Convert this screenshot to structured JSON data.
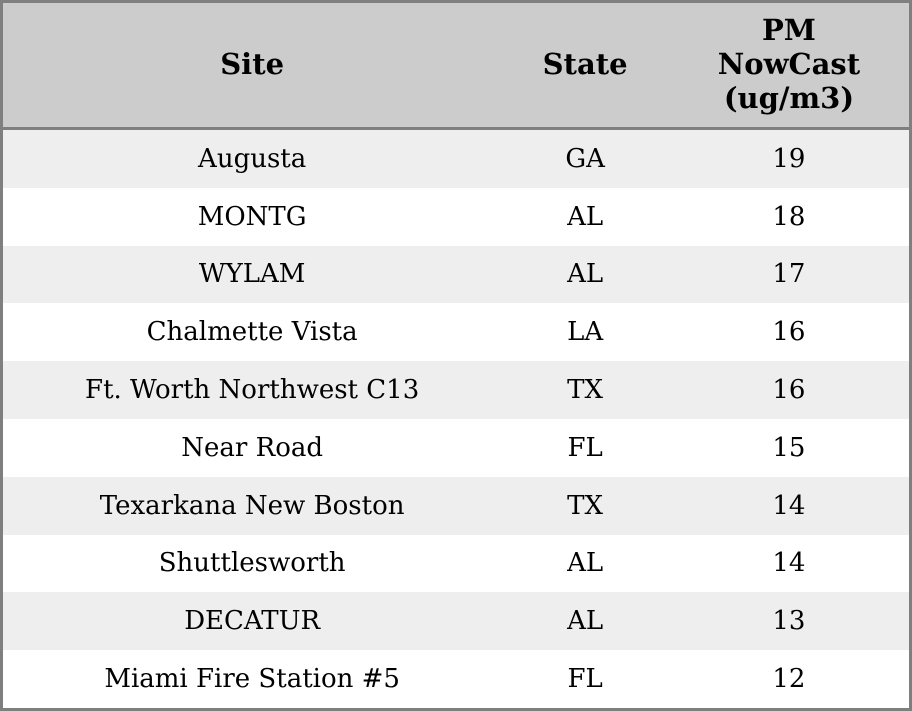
{
  "chart_data": {
    "type": "table",
    "title": "",
    "columns": [
      "Site",
      "State",
      "PM NowCast (ug/m3)"
    ],
    "header_display": [
      "Site",
      "State",
      "PM\nNowCast\n(ug/m3)"
    ],
    "rows": [
      [
        "Augusta",
        "GA",
        19
      ],
      [
        "MONTG",
        "AL",
        18
      ],
      [
        "WYLAM",
        "AL",
        17
      ],
      [
        "Chalmette Vista",
        "LA",
        16
      ],
      [
        "Ft. Worth Northwest C13",
        "TX",
        16
      ],
      [
        "Near Road",
        "FL",
        15
      ],
      [
        "Texarkana New Boston",
        "TX",
        14
      ],
      [
        "Shuttlesworth",
        "AL",
        14
      ],
      [
        "DECATUR",
        "AL",
        13
      ],
      [
        "Miami Fire Station #5",
        "FL",
        12
      ]
    ],
    "layout": {
      "striped": true,
      "header_position": "top"
    }
  },
  "colors": {
    "header_bg": "#cccccc",
    "row_stripe_bg": "#eeeeee",
    "row_bg": "#ffffff",
    "border": "#7f7f7f",
    "text": "#000000"
  }
}
